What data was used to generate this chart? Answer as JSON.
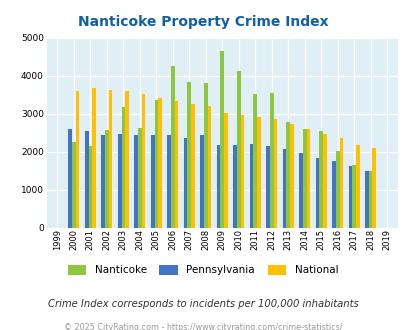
{
  "title": "Nanticoke Property Crime Index",
  "years": [
    1999,
    2000,
    2001,
    2002,
    2003,
    2004,
    2005,
    2006,
    2007,
    2008,
    2009,
    2010,
    2011,
    2012,
    2013,
    2014,
    2015,
    2016,
    2017,
    2018,
    2019
  ],
  "nanticoke": [
    null,
    2270,
    2160,
    2580,
    3170,
    2640,
    3360,
    4270,
    3840,
    3810,
    4660,
    4140,
    3510,
    3540,
    2790,
    2590,
    2550,
    2010,
    1640,
    1490,
    null
  ],
  "pennsylvania": [
    null,
    2600,
    2540,
    2440,
    2460,
    2450,
    2430,
    2450,
    2360,
    2430,
    2190,
    2190,
    2210,
    2150,
    2070,
    1960,
    1840,
    1770,
    1620,
    1490,
    null
  ],
  "national": [
    null,
    3610,
    3680,
    3640,
    3590,
    3510,
    3430,
    3340,
    3260,
    3210,
    3030,
    2960,
    2930,
    2860,
    2730,
    2590,
    2480,
    2360,
    2190,
    2100,
    null
  ],
  "colors": {
    "nanticoke": "#8DC63F",
    "pennsylvania": "#4472C4",
    "national": "#FFC000"
  },
  "ylim": [
    0,
    5000
  ],
  "yticks": [
    0,
    1000,
    2000,
    3000,
    4000,
    5000
  ],
  "bg_color": "#E0EEF5",
  "grid_color": "#FFFFFF",
  "title_color": "#1060A8",
  "subtitle": "Crime Index corresponds to incidents per 100,000 inhabitants",
  "footer": "© 2025 CityRating.com - https://www.cityrating.com/crime-statistics/"
}
